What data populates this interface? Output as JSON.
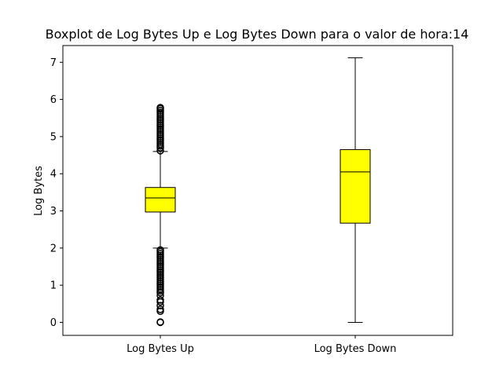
{
  "chart_data": {
    "type": "box",
    "title": "Boxplot de Log Bytes Up e Log Bytes Down para o valor de hora:14",
    "xlabel": "",
    "ylabel": "Log Bytes",
    "ylim": [
      -0.35,
      7.45
    ],
    "yticks": [
      "0",
      "1",
      "2",
      "3",
      "4",
      "5",
      "6",
      "7"
    ],
    "grid": false,
    "box_color": "#ffff00",
    "edge_color": "#000000",
    "series": [
      {
        "name": "Log Bytes Up",
        "whisker_low": 2.0,
        "q1": 2.97,
        "median": 3.35,
        "q3": 3.63,
        "whisker_high": 4.6,
        "outliers_low": [
          0.0,
          0.01,
          0.3,
          0.35,
          0.45,
          0.55,
          0.6,
          0.72,
          0.8,
          0.85,
          0.9,
          0.95,
          1.0,
          1.05,
          1.1,
          1.15,
          1.2,
          1.25,
          1.3,
          1.35,
          1.4,
          1.45,
          1.5,
          1.55,
          1.6,
          1.65,
          1.7,
          1.75,
          1.8,
          1.85,
          1.9,
          1.95
        ],
        "outliers_high": [
          4.62,
          4.7,
          4.75,
          4.8,
          4.85,
          4.9,
          4.95,
          5.0,
          5.05,
          5.1,
          5.15,
          5.2,
          5.25,
          5.3,
          5.35,
          5.4,
          5.45,
          5.5,
          5.55,
          5.6,
          5.65,
          5.7,
          5.75,
          5.78
        ]
      },
      {
        "name": "Log Bytes Down",
        "whisker_low": 0.0,
        "q1": 2.67,
        "median": 4.05,
        "q3": 4.65,
        "whisker_high": 7.12,
        "outliers_low": [],
        "outliers_high": []
      }
    ]
  }
}
